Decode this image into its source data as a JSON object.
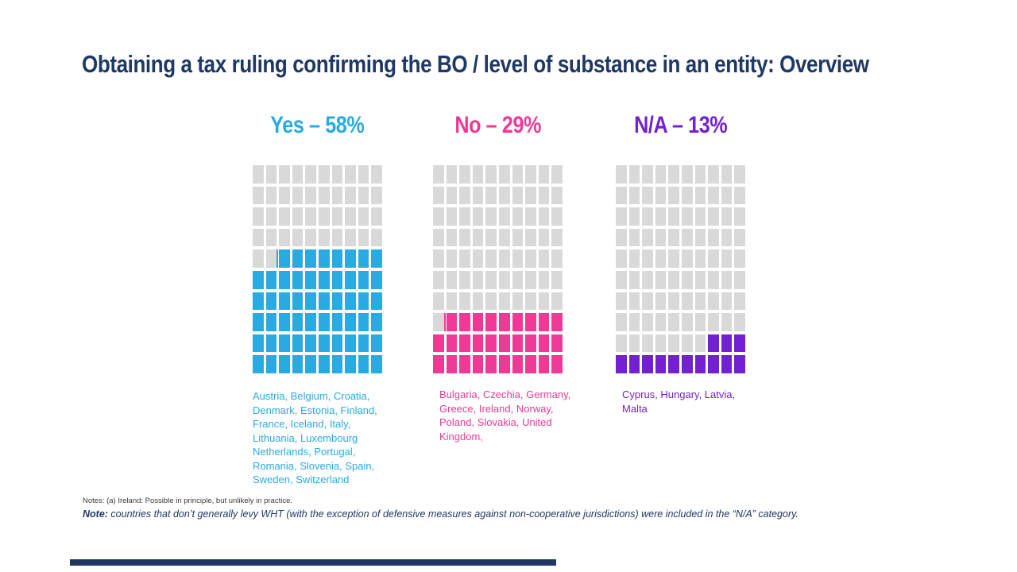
{
  "page": {
    "title": "Obtaining a tax ruling confirming the BO / level of substance in an entity: Overview",
    "accent_navy": "#1f3864",
    "background": "#ffffff"
  },
  "waffle": {
    "rows": 10,
    "cols": 10,
    "empty_color": "#d9d9d9",
    "fill_origin": "bottom-right"
  },
  "charts": [
    {
      "key": "yes",
      "label": "Yes – 58%",
      "value_percent": 58,
      "color": "#29abe2",
      "partial_sliver": true,
      "countries": "Austria, Belgium, Croatia,\nDenmark, Estonia, Finland,\nFrance, Iceland, Italy,\nLithuania, Luxembourg\nNetherlands, Portugal,\nRomania, Slovenia, Spain,\nSweden, Switzerland"
    },
    {
      "key": "no",
      "label": "No – 29%",
      "value_percent": 29,
      "color": "#ee3a96",
      "partial_sliver": true,
      "countries": "Bulgaria, Czechia, Germany,\nGreece, Ireland, Norway,\nPoland, Slovakia, United\nKingdom,"
    },
    {
      "key": "na",
      "label": "N/A – 13%",
      "value_percent": 13,
      "color": "#7320d2",
      "partial_sliver": false,
      "countries": "Cyprus, Hungary, Latvia,\nMalta"
    }
  ],
  "notes": {
    "small": "Notes: (a) Ireland: Possible in principle, but unlikely in practice.",
    "main_label": "Note:",
    "main_text": " countries that don’t generally levy WHT (with the exception of defensive measures against non-cooperative jurisdictions) were included in the “N/A” category."
  },
  "chart_data": {
    "type": "waffle",
    "title": "Obtaining a tax ruling confirming the BO / level of substance in an entity: Overview",
    "categories": [
      "Yes",
      "No",
      "N/A"
    ],
    "values": [
      58,
      29,
      13
    ],
    "unit": "%",
    "grid": "10x10 squares per category, 1 square = 1%",
    "legend_position": "headers above each grid",
    "series_colors": [
      "#29abe2",
      "#ee3a96",
      "#7320d2"
    ],
    "empty_square_color": "#d9d9d9",
    "groups": [
      {
        "category": "Yes",
        "percent": 58,
        "countries": [
          "Austria",
          "Belgium",
          "Croatia",
          "Denmark",
          "Estonia",
          "Finland",
          "France",
          "Iceland",
          "Italy",
          "Lithuania",
          "Luxembourg",
          "Netherlands",
          "Portugal",
          "Romania",
          "Slovenia",
          "Spain",
          "Sweden",
          "Switzerland"
        ]
      },
      {
        "category": "No",
        "percent": 29,
        "countries": [
          "Bulgaria",
          "Czechia",
          "Germany",
          "Greece",
          "Ireland",
          "Norway",
          "Poland",
          "Slovakia",
          "United Kingdom"
        ]
      },
      {
        "category": "N/A",
        "percent": 13,
        "countries": [
          "Cyprus",
          "Hungary",
          "Latvia",
          "Malta"
        ]
      }
    ],
    "annotations": [
      "Notes: (a) Ireland: Possible in principle, but unlikely in practice.",
      "Note: countries that don’t generally levy WHT (with the exception of defensive measures against non-cooperative jurisdictions) were included in the “N/A” category."
    ]
  }
}
